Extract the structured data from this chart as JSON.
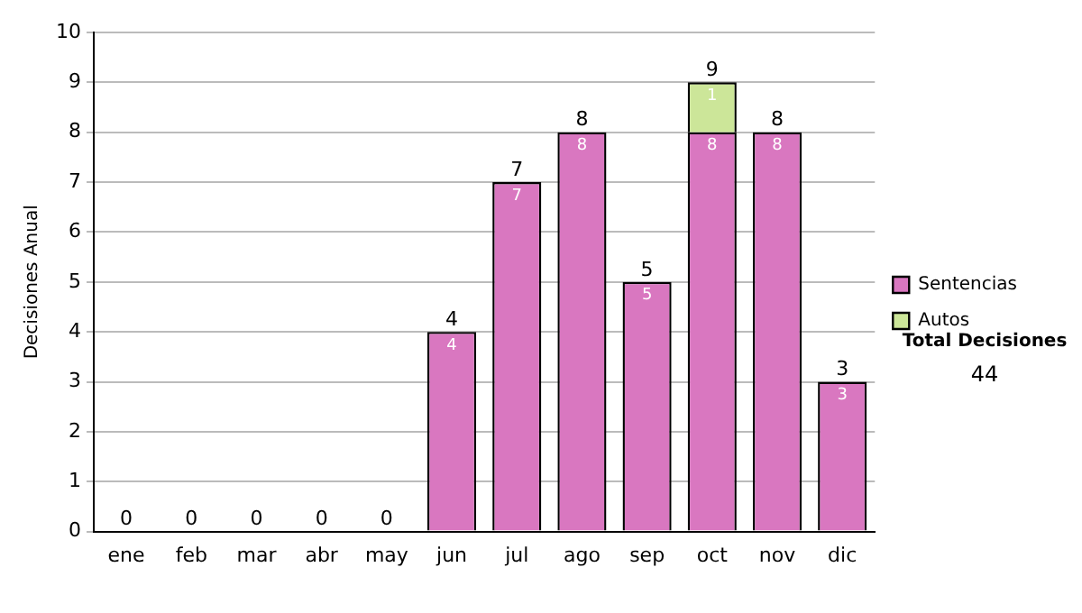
{
  "chart_data": {
    "type": "bar",
    "ylabel": "Decisiones Anual",
    "categories": [
      "ene",
      "feb",
      "mar",
      "abr",
      "may",
      "jun",
      "jul",
      "ago",
      "sep",
      "oct",
      "nov",
      "dic"
    ],
    "series": [
      {
        "name": "Sentencias",
        "color": "#d977c0",
        "values": [
          0,
          0,
          0,
          0,
          0,
          4,
          7,
          8,
          5,
          8,
          8,
          3
        ],
        "value_labels": [
          null,
          null,
          null,
          null,
          null,
          "4",
          "7",
          "8",
          "5",
          "8",
          "8",
          "3"
        ]
      },
      {
        "name": "Autos",
        "color": "#cce699",
        "values": [
          0,
          0,
          0,
          0,
          0,
          0,
          0,
          0,
          0,
          1,
          0,
          0
        ],
        "value_labels": [
          null,
          null,
          null,
          null,
          null,
          null,
          null,
          null,
          null,
          "1",
          null,
          null
        ]
      }
    ],
    "stacked": true,
    "totals": [
      "0",
      "0",
      "0",
      "0",
      "0",
      "4",
      "7",
      "8",
      "5",
      "9",
      "8",
      "3"
    ],
    "ylim": [
      0,
      10
    ],
    "yticks": [
      0,
      1,
      2,
      3,
      4,
      5,
      6,
      7,
      8,
      9,
      10
    ],
    "grid": "y",
    "legend": "right",
    "annotations": [
      "Total Decisiones",
      "44"
    ]
  }
}
